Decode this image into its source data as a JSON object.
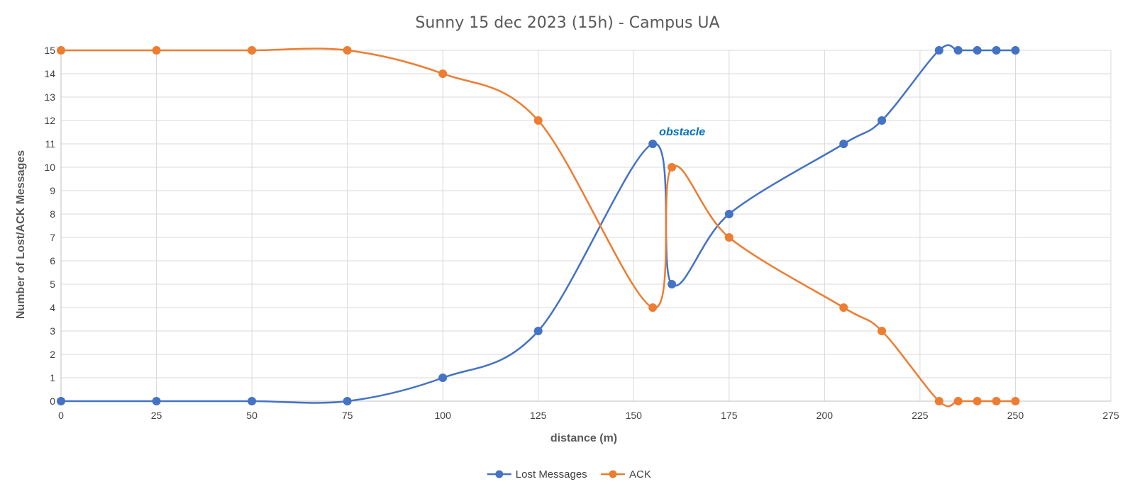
{
  "chart_data": {
    "type": "line",
    "title": "Sunny 15 dec 2023 (15h)  - Campus UA",
    "xlabel": "distance (m)",
    "ylabel": "Number of Lost/ACK Messages",
    "xlim": [
      0,
      275
    ],
    "ylim": [
      0,
      15
    ],
    "x_ticks": [
      0,
      25,
      50,
      75,
      100,
      125,
      150,
      175,
      200,
      225,
      250,
      275
    ],
    "y_ticks": [
      0,
      1,
      2,
      3,
      4,
      5,
      6,
      7,
      8,
      9,
      10,
      11,
      12,
      13,
      14,
      15
    ],
    "grid": true,
    "smooth": true,
    "legend_position": "bottom",
    "x": [
      0,
      25,
      50,
      75,
      100,
      125,
      155,
      160,
      175,
      205,
      215,
      230,
      235,
      240,
      245,
      250
    ],
    "series": [
      {
        "name": "Lost Messages",
        "color": "#4472C4",
        "values": [
          0,
          0,
          0,
          0,
          1,
          3,
          11,
          5,
          8,
          11,
          12,
          15,
          15,
          15,
          15,
          15
        ]
      },
      {
        "name": "ACK",
        "color": "#ED7D31",
        "values": [
          15,
          15,
          15,
          15,
          14,
          12,
          4,
          10,
          7,
          4,
          3,
          0,
          0,
          0,
          0,
          0
        ]
      }
    ],
    "annotations": [
      {
        "text": "obstacle",
        "x": 155,
        "y": 11,
        "color": "#0070C0"
      }
    ]
  }
}
